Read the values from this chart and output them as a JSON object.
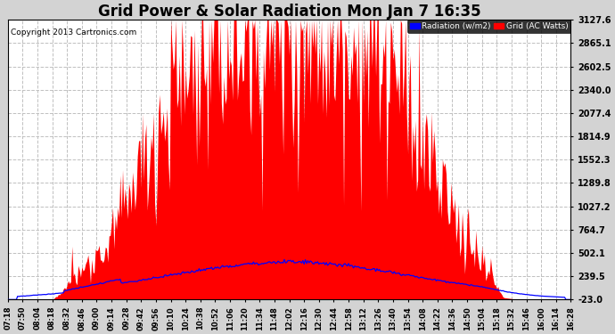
{
  "title": "Grid Power & Solar Radiation Mon Jan 7 16:35",
  "copyright": "Copyright 2013 Cartronics.com",
  "legend_radiation": "Radiation (w/m2)",
  "legend_grid": "Grid (AC Watts)",
  "yticks": [
    -23.0,
    239.5,
    502.1,
    764.7,
    1027.2,
    1289.8,
    1552.3,
    1814.9,
    2077.4,
    2340.0,
    2602.5,
    2865.1,
    3127.6
  ],
  "ylim": [
    -23.0,
    3127.6
  ],
  "background_color": "#d3d3d3",
  "plot_bg_color": "#ffffff",
  "grid_color": "#c0c0c0",
  "title_fontsize": 12,
  "xtick_labels": [
    "07:18",
    "07:50",
    "08:04",
    "08:18",
    "08:32",
    "08:46",
    "09:00",
    "09:14",
    "09:28",
    "09:42",
    "09:56",
    "10:10",
    "10:24",
    "10:38",
    "10:52",
    "11:06",
    "11:20",
    "11:34",
    "11:48",
    "12:02",
    "12:16",
    "12:30",
    "12:44",
    "12:58",
    "13:12",
    "13:26",
    "13:40",
    "13:54",
    "14:08",
    "14:22",
    "14:36",
    "14:50",
    "15:04",
    "15:18",
    "15:32",
    "15:46",
    "16:00",
    "16:14",
    "16:28"
  ],
  "red_color": "#ff0000",
  "blue_color": "#0000ff",
  "fill_baseline": -23.0
}
